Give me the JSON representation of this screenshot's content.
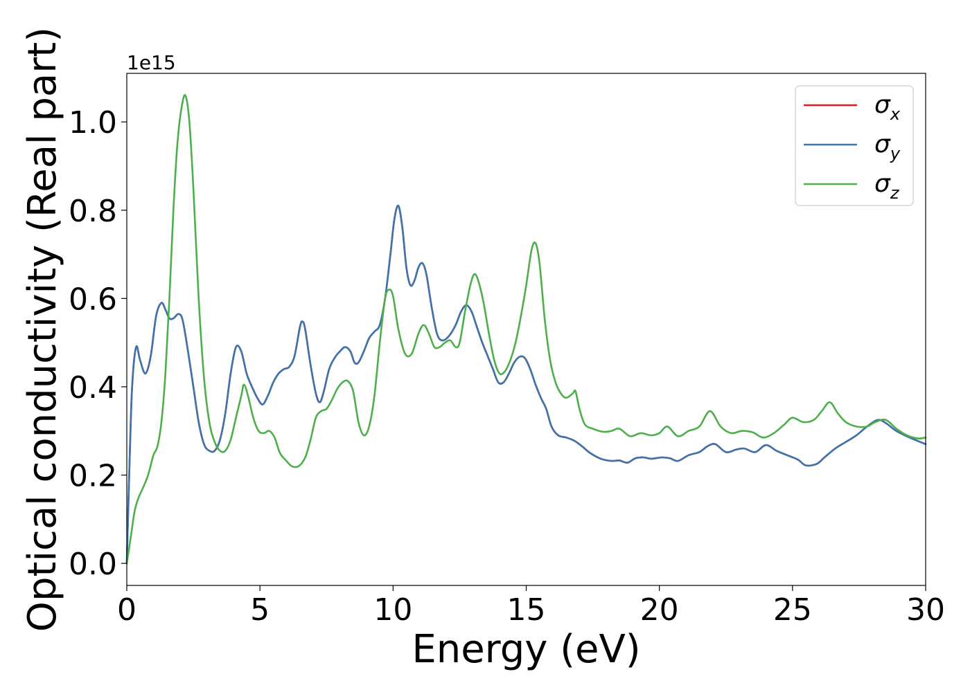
{
  "chart_data": {
    "type": "line",
    "xlabel": "Energy (eV)",
    "ylabel": "Optical conductivity (Real part)",
    "y_offset_label": "1e15",
    "xlim": [
      0,
      30
    ],
    "ylim": [
      -0.05,
      1.11
    ],
    "x_ticks": [
      0,
      5,
      10,
      15,
      20,
      25,
      30
    ],
    "x_tick_labels": [
      "0",
      "5",
      "10",
      "15",
      "20",
      "25",
      "30"
    ],
    "y_ticks": [
      0.0,
      0.2,
      0.4,
      0.6,
      0.8,
      1.0
    ],
    "y_tick_labels": [
      "0.0",
      "0.2",
      "0.4",
      "0.6",
      "0.8",
      "1.0"
    ],
    "grid": false,
    "legend_position": "top-right",
    "series": [
      {
        "name": "σ_x",
        "legend_base": "σ",
        "legend_sub": "x",
        "color": "#e41a1c",
        "points": [
          [
            0,
            0
          ],
          [
            0.1,
            0.22
          ],
          [
            0.2,
            0.4
          ],
          [
            0.35,
            0.49
          ],
          [
            0.5,
            0.46
          ],
          [
            0.7,
            0.43
          ],
          [
            0.9,
            0.47
          ],
          [
            1.1,
            0.56
          ],
          [
            1.3,
            0.59
          ],
          [
            1.45,
            0.575
          ],
          [
            1.6,
            0.555
          ],
          [
            1.75,
            0.555
          ],
          [
            1.95,
            0.565
          ],
          [
            2.1,
            0.55
          ],
          [
            2.3,
            0.48
          ],
          [
            2.5,
            0.4
          ],
          [
            2.7,
            0.32
          ],
          [
            2.9,
            0.27
          ],
          [
            3.1,
            0.255
          ],
          [
            3.3,
            0.255
          ],
          [
            3.5,
            0.28
          ],
          [
            3.7,
            0.34
          ],
          [
            3.9,
            0.43
          ],
          [
            4.1,
            0.49
          ],
          [
            4.3,
            0.48
          ],
          [
            4.5,
            0.43
          ],
          [
            4.7,
            0.4
          ],
          [
            4.9,
            0.375
          ],
          [
            5.1,
            0.36
          ],
          [
            5.3,
            0.38
          ],
          [
            5.5,
            0.41
          ],
          [
            5.7,
            0.43
          ],
          [
            5.9,
            0.44
          ],
          [
            6.1,
            0.445
          ],
          [
            6.3,
            0.47
          ],
          [
            6.5,
            0.535
          ],
          [
            6.6,
            0.548
          ],
          [
            6.7,
            0.53
          ],
          [
            6.9,
            0.45
          ],
          [
            7.1,
            0.385
          ],
          [
            7.25,
            0.365
          ],
          [
            7.4,
            0.39
          ],
          [
            7.6,
            0.44
          ],
          [
            7.8,
            0.465
          ],
          [
            8.0,
            0.48
          ],
          [
            8.2,
            0.49
          ],
          [
            8.4,
            0.48
          ],
          [
            8.55,
            0.455
          ],
          [
            8.7,
            0.455
          ],
          [
            8.9,
            0.48
          ],
          [
            9.1,
            0.51
          ],
          [
            9.3,
            0.525
          ],
          [
            9.5,
            0.54
          ],
          [
            9.7,
            0.6
          ],
          [
            9.9,
            0.7
          ],
          [
            10.05,
            0.78
          ],
          [
            10.2,
            0.81
          ],
          [
            10.35,
            0.76
          ],
          [
            10.5,
            0.67
          ],
          [
            10.65,
            0.63
          ],
          [
            10.8,
            0.64
          ],
          [
            10.95,
            0.67
          ],
          [
            11.1,
            0.68
          ],
          [
            11.25,
            0.655
          ],
          [
            11.45,
            0.58
          ],
          [
            11.65,
            0.52
          ],
          [
            11.85,
            0.505
          ],
          [
            12.1,
            0.515
          ],
          [
            12.35,
            0.54
          ],
          [
            12.55,
            0.57
          ],
          [
            12.75,
            0.585
          ],
          [
            12.95,
            0.57
          ],
          [
            13.15,
            0.535
          ],
          [
            13.35,
            0.5
          ],
          [
            13.55,
            0.47
          ],
          [
            13.75,
            0.44
          ],
          [
            13.95,
            0.41
          ],
          [
            14.15,
            0.41
          ],
          [
            14.35,
            0.43
          ],
          [
            14.55,
            0.455
          ],
          [
            14.75,
            0.468
          ],
          [
            14.95,
            0.465
          ],
          [
            15.15,
            0.44
          ],
          [
            15.35,
            0.405
          ],
          [
            15.55,
            0.375
          ],
          [
            15.75,
            0.35
          ],
          [
            15.95,
            0.31
          ],
          [
            16.2,
            0.29
          ],
          [
            16.5,
            0.285
          ],
          [
            16.8,
            0.278
          ],
          [
            17.1,
            0.265
          ],
          [
            17.4,
            0.25
          ],
          [
            17.8,
            0.237
          ],
          [
            18.2,
            0.232
          ],
          [
            18.5,
            0.233
          ],
          [
            18.8,
            0.228
          ],
          [
            19.1,
            0.238
          ],
          [
            19.4,
            0.24
          ],
          [
            19.7,
            0.237
          ],
          [
            20.1,
            0.24
          ],
          [
            20.4,
            0.238
          ],
          [
            20.7,
            0.232
          ],
          [
            21.1,
            0.245
          ],
          [
            21.5,
            0.252
          ],
          [
            21.8,
            0.265
          ],
          [
            22.1,
            0.27
          ],
          [
            22.5,
            0.252
          ],
          [
            22.9,
            0.258
          ],
          [
            23.2,
            0.26
          ],
          [
            23.6,
            0.252
          ],
          [
            24.0,
            0.268
          ],
          [
            24.4,
            0.255
          ],
          [
            24.8,
            0.245
          ],
          [
            25.2,
            0.235
          ],
          [
            25.5,
            0.222
          ],
          [
            25.9,
            0.225
          ],
          [
            26.2,
            0.24
          ],
          [
            26.6,
            0.26
          ],
          [
            27.0,
            0.275
          ],
          [
            27.4,
            0.29
          ],
          [
            27.8,
            0.31
          ],
          [
            28.2,
            0.325
          ],
          [
            28.5,
            0.318
          ],
          [
            28.9,
            0.3
          ],
          [
            29.4,
            0.285
          ],
          [
            30,
            0.27
          ]
        ]
      },
      {
        "name": "σ_y",
        "legend_base": "σ",
        "legend_sub": "y",
        "color": "#3a75b0",
        "same_as": "σ_x"
      },
      {
        "name": "σ_z",
        "legend_base": "σ",
        "legend_sub": "z",
        "color": "#4daf4a",
        "points": [
          [
            0,
            0
          ],
          [
            0.15,
            0.06
          ],
          [
            0.3,
            0.12
          ],
          [
            0.45,
            0.15
          ],
          [
            0.6,
            0.17
          ],
          [
            0.8,
            0.2
          ],
          [
            1.0,
            0.245
          ],
          [
            1.15,
            0.265
          ],
          [
            1.3,
            0.32
          ],
          [
            1.45,
            0.43
          ],
          [
            1.6,
            0.6
          ],
          [
            1.75,
            0.8
          ],
          [
            1.9,
            0.95
          ],
          [
            2.05,
            1.03
          ],
          [
            2.2,
            1.06
          ],
          [
            2.35,
            1.0
          ],
          [
            2.5,
            0.85
          ],
          [
            2.7,
            0.6
          ],
          [
            2.9,
            0.42
          ],
          [
            3.1,
            0.32
          ],
          [
            3.3,
            0.275
          ],
          [
            3.5,
            0.255
          ],
          [
            3.7,
            0.255
          ],
          [
            3.9,
            0.28
          ],
          [
            4.1,
            0.33
          ],
          [
            4.3,
            0.38
          ],
          [
            4.4,
            0.405
          ],
          [
            4.55,
            0.38
          ],
          [
            4.75,
            0.33
          ],
          [
            4.95,
            0.3
          ],
          [
            5.15,
            0.295
          ],
          [
            5.35,
            0.3
          ],
          [
            5.55,
            0.285
          ],
          [
            5.75,
            0.25
          ],
          [
            5.95,
            0.235
          ],
          [
            6.2,
            0.22
          ],
          [
            6.45,
            0.22
          ],
          [
            6.7,
            0.24
          ],
          [
            6.9,
            0.28
          ],
          [
            7.1,
            0.33
          ],
          [
            7.3,
            0.345
          ],
          [
            7.5,
            0.35
          ],
          [
            7.7,
            0.37
          ],
          [
            7.9,
            0.395
          ],
          [
            8.1,
            0.41
          ],
          [
            8.3,
            0.413
          ],
          [
            8.5,
            0.39
          ],
          [
            8.7,
            0.32
          ],
          [
            8.9,
            0.29
          ],
          [
            9.1,
            0.31
          ],
          [
            9.3,
            0.38
          ],
          [
            9.5,
            0.5
          ],
          [
            9.7,
            0.6
          ],
          [
            9.85,
            0.62
          ],
          [
            10.0,
            0.605
          ],
          [
            10.2,
            0.53
          ],
          [
            10.45,
            0.475
          ],
          [
            10.7,
            0.475
          ],
          [
            10.95,
            0.52
          ],
          [
            11.15,
            0.54
          ],
          [
            11.35,
            0.52
          ],
          [
            11.55,
            0.49
          ],
          [
            11.75,
            0.49
          ],
          [
            11.95,
            0.5
          ],
          [
            12.15,
            0.505
          ],
          [
            12.35,
            0.49
          ],
          [
            12.5,
            0.5
          ],
          [
            12.7,
            0.57
          ],
          [
            12.9,
            0.63
          ],
          [
            13.05,
            0.655
          ],
          [
            13.2,
            0.64
          ],
          [
            13.4,
            0.59
          ],
          [
            13.6,
            0.52
          ],
          [
            13.8,
            0.46
          ],
          [
            14.0,
            0.43
          ],
          [
            14.2,
            0.435
          ],
          [
            14.4,
            0.46
          ],
          [
            14.6,
            0.5
          ],
          [
            14.8,
            0.56
          ],
          [
            15.0,
            0.63
          ],
          [
            15.2,
            0.71
          ],
          [
            15.35,
            0.725
          ],
          [
            15.5,
            0.68
          ],
          [
            15.7,
            0.55
          ],
          [
            15.9,
            0.46
          ],
          [
            16.1,
            0.41
          ],
          [
            16.3,
            0.385
          ],
          [
            16.5,
            0.375
          ],
          [
            16.75,
            0.385
          ],
          [
            16.85,
            0.39
          ],
          [
            17.0,
            0.35
          ],
          [
            17.2,
            0.315
          ],
          [
            17.5,
            0.305
          ],
          [
            17.9,
            0.298
          ],
          [
            18.2,
            0.3
          ],
          [
            18.5,
            0.305
          ],
          [
            18.9,
            0.288
          ],
          [
            19.3,
            0.295
          ],
          [
            19.7,
            0.29
          ],
          [
            20.0,
            0.295
          ],
          [
            20.3,
            0.31
          ],
          [
            20.7,
            0.288
          ],
          [
            21.1,
            0.3
          ],
          [
            21.5,
            0.31
          ],
          [
            21.9,
            0.345
          ],
          [
            22.3,
            0.31
          ],
          [
            22.7,
            0.295
          ],
          [
            23.1,
            0.3
          ],
          [
            23.5,
            0.297
          ],
          [
            23.9,
            0.285
          ],
          [
            24.3,
            0.295
          ],
          [
            24.7,
            0.315
          ],
          [
            25.0,
            0.33
          ],
          [
            25.4,
            0.32
          ],
          [
            25.8,
            0.325
          ],
          [
            26.1,
            0.345
          ],
          [
            26.4,
            0.365
          ],
          [
            26.7,
            0.34
          ],
          [
            27.0,
            0.32
          ],
          [
            27.4,
            0.31
          ],
          [
            27.8,
            0.31
          ],
          [
            28.1,
            0.32
          ],
          [
            28.5,
            0.325
          ],
          [
            28.9,
            0.305
          ],
          [
            29.3,
            0.29
          ],
          [
            29.7,
            0.283
          ],
          [
            30,
            0.285
          ]
        ]
      }
    ]
  }
}
